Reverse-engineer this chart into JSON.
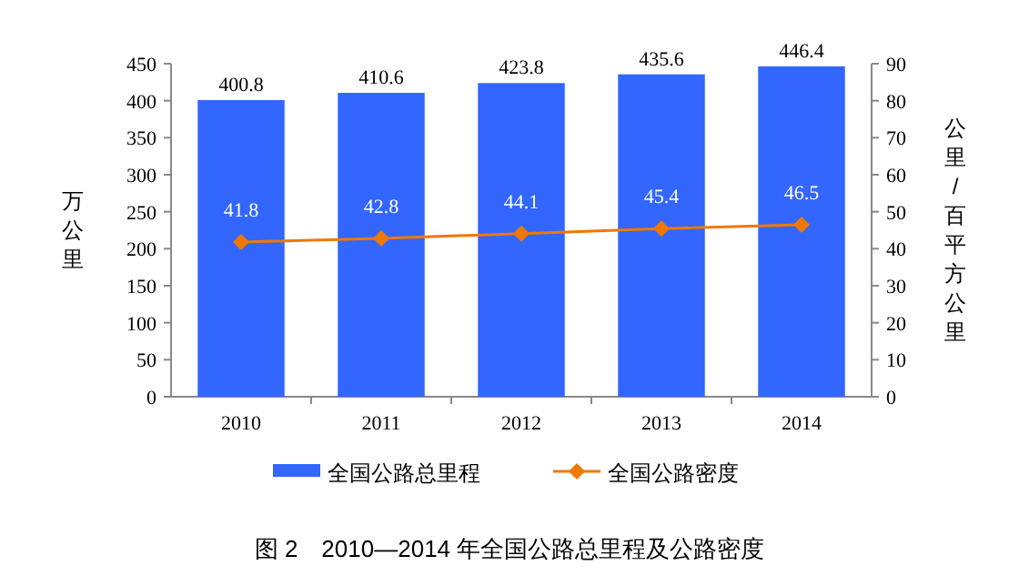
{
  "chart_data": {
    "type": "bar",
    "title": "图 2　2010—2014 年全国公路总里程及公路密度",
    "categories": [
      "2010",
      "2011",
      "2012",
      "2013",
      "2014"
    ],
    "ylabel": "万公里",
    "y2label": "公里/百平方公里",
    "ylim": [
      0,
      450
    ],
    "yticks": [
      0,
      50,
      100,
      150,
      200,
      250,
      300,
      350,
      400,
      450
    ],
    "y2lim": [
      0,
      90
    ],
    "y2ticks": [
      0,
      10,
      20,
      30,
      40,
      50,
      60,
      70,
      80,
      90
    ],
    "grid": false,
    "legend": "bottom",
    "data_labels": true,
    "marker": "diamond",
    "series": [
      {
        "name": "全国公路总里程",
        "color": "#3366ff",
        "values": [
          400.8,
          410.6,
          423.8,
          435.6,
          446.4
        ]
      },
      {
        "name": "全国公路密度",
        "type": "line",
        "axis": "y2",
        "color": "#f07800",
        "values": [
          41.8,
          42.8,
          44.1,
          45.4,
          46.5
        ]
      }
    ]
  }
}
